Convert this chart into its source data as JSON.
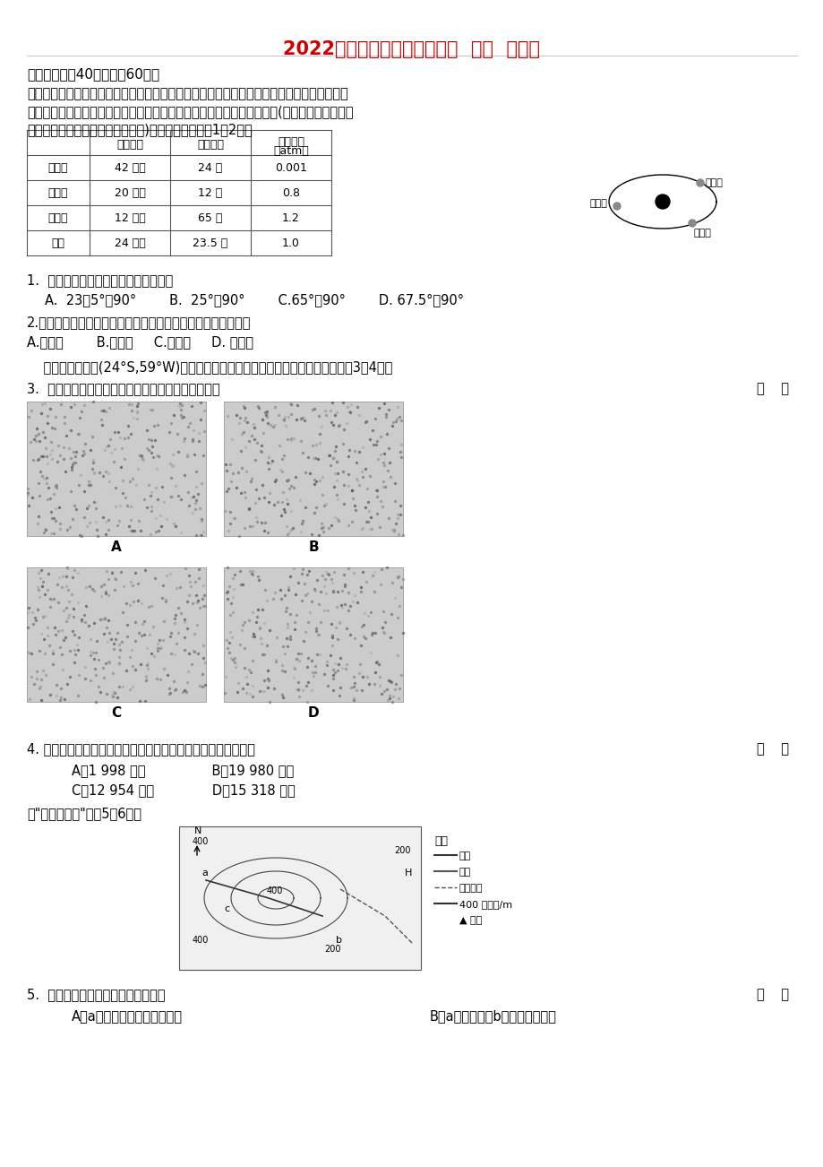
{
  "title": "2022年高三上学期第一次检测  地理  含答案",
  "title_color": "#CC0000",
  "bg_color": "#ffffff",
  "section1_header": "一、选择题（40小题，共60分）",
  "intro_text": "假设有一颗与太阳类似的恒星，其中有三颗固态行星在一共同轨道上绕着它运转，如图。这三\n颗行星的质量与大小都与地球差不多，其它基本数据与轨道参数如表所示(为方便对照，地球的\n数据附在表中的最后一列作为参考)。依据图表，回答1～2题。",
  "table_headers": [
    "",
    "自转周期",
    "轨道倾角",
    "大气压力\n（atm）"
  ],
  "table_rows": [
    [
      "甲行星",
      "42 小时",
      "24 度",
      "0.001"
    ],
    [
      "乙行星",
      "20 小时",
      "12 度",
      "0.8"
    ],
    [
      "丙行星",
      "12 小时",
      "65 度",
      "1.2"
    ],
    [
      "地球",
      "24 小时",
      "23.5 度",
      "1.0"
    ]
  ],
  "q1_text": "1.  丙行星出现极昼、极夜的纬度范围为",
  "q1_options": "A.  23．5°～90°        B.  25°～90°        C.65°～90°        D. 67.5°～90°",
  "q2_text": "2.甲、乙、丙三行星中，昼夜温度差别最大与最小的行星分别是",
  "q2_options": "A.甲、乙        B.甲、丙     C.乙、丙     D. 丙、乙",
  "intro2_text": "    某人幻想试图从(24°S,59°W)入地，并始终保持直线前进且穿越地心。据此回答3～4题。",
  "q3_text": "3.  当他钻出地球另一端时，最可能看到下列何种景观",
  "q3_bracket": "（    ）",
  "q4_text": "4. 如该人沿经线圈过北极点飞行到达上题中的地点，他要飞行约",
  "q4_bracket": "（    ）",
  "q4_options_left": "A．1 998 千米                B．19 980 千米",
  "q4_options_right": "C．12 954 千米              D．15 318 千米",
  "q5_intro": "读\"某地地形图\"回答5～6题。",
  "q5_text": "5.  根据上图信息，下列判断正确的是",
  "q5_bracket": "（    ）",
  "q5_options_left": "A．a河的总体流向为自东向西",
  "q5_options_right": "B．a河的落差比b河大，水流更急"
}
